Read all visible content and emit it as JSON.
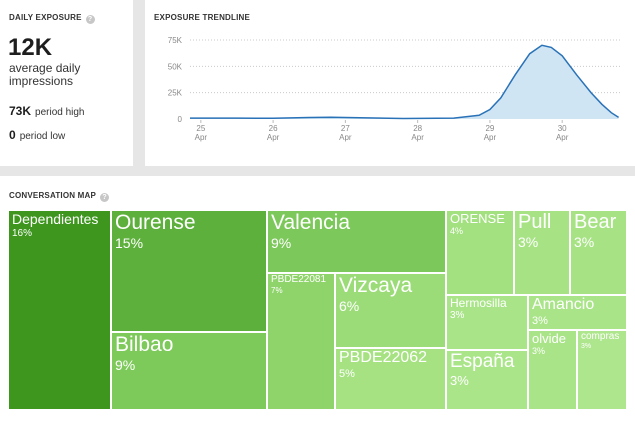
{
  "daily_exposure": {
    "title": "DAILY EXPOSURE",
    "help_icon": "?",
    "value": "12K",
    "description": "average daily impressions",
    "high_value": "73K",
    "high_label": "period high",
    "low_value": "0",
    "low_label": "period low"
  },
  "trendline": {
    "title": "EXPOSURE TRENDLINE"
  },
  "chart_data": {
    "type": "area",
    "y_ticks": [
      "75K",
      "50K",
      "25K",
      "0"
    ],
    "ylim": [
      0,
      75000
    ],
    "x_ticks": [
      {
        "day": "25",
        "month": "Apr"
      },
      {
        "day": "26",
        "month": "Apr"
      },
      {
        "day": "27",
        "month": "Apr"
      },
      {
        "day": "28",
        "month": "Apr"
      },
      {
        "day": "29",
        "month": "Apr"
      },
      {
        "day": "30",
        "month": "Apr"
      }
    ],
    "xlim": [
      24.85,
      30.8
    ],
    "grid": true,
    "points": [
      [
        24.85,
        900
      ],
      [
        25.5,
        900
      ],
      [
        26.0,
        700
      ],
      [
        26.5,
        1400
      ],
      [
        26.8,
        1700
      ],
      [
        27.2,
        1200
      ],
      [
        27.8,
        500
      ],
      [
        28.5,
        900
      ],
      [
        28.85,
        3500
      ],
      [
        29.0,
        9000
      ],
      [
        29.15,
        20000
      ],
      [
        29.35,
        42000
      ],
      [
        29.55,
        62000
      ],
      [
        29.72,
        70000
      ],
      [
        29.85,
        68000
      ],
      [
        30.0,
        60000
      ],
      [
        30.2,
        42000
      ],
      [
        30.4,
        25000
      ],
      [
        30.55,
        14000
      ],
      [
        30.68,
        6000
      ],
      [
        30.78,
        1500
      ]
    ],
    "line_color": "#2a72b8",
    "fill_color": "#cfe5f3"
  },
  "conversation_map": {
    "title": "CONVERSATION MAP",
    "tiles": [
      {
        "label": "Dependientes",
        "pct": "16%",
        "color": "#3e961f"
      },
      {
        "label": "Ourense",
        "pct": "15%",
        "color": "#5eb03c"
      },
      {
        "label": "Bilbao",
        "pct": "9%",
        "color": "#7dc95a"
      },
      {
        "label": "Valencia",
        "pct": "9%",
        "color": "#7cc85a"
      },
      {
        "label": "PBDE22081",
        "pct": "7%",
        "color": "#8fd46a"
      },
      {
        "label": "Vizcaya",
        "pct": "6%",
        "color": "#9bdc78"
      },
      {
        "label": "PBDE22062",
        "pct": "5%",
        "color": "#a6e282"
      },
      {
        "label": "ORENSE",
        "pct": "4%",
        "color": "#a3e080"
      },
      {
        "label": "Pull",
        "pct": "3%",
        "color": "#a7e385"
      },
      {
        "label": "Bear",
        "pct": "3%",
        "color": "#a7e385"
      },
      {
        "label": "Hermosilla",
        "pct": "3%",
        "color": "#a9e488"
      },
      {
        "label": "Amancio",
        "pct": "3%",
        "color": "#a9e488"
      },
      {
        "label": "España",
        "pct": "3%",
        "color": "#abe58a"
      },
      {
        "label": "olvide",
        "pct": "3%",
        "color": "#aae489"
      },
      {
        "label": "compras",
        "pct": "3%",
        "color": "#aee68d"
      }
    ]
  }
}
